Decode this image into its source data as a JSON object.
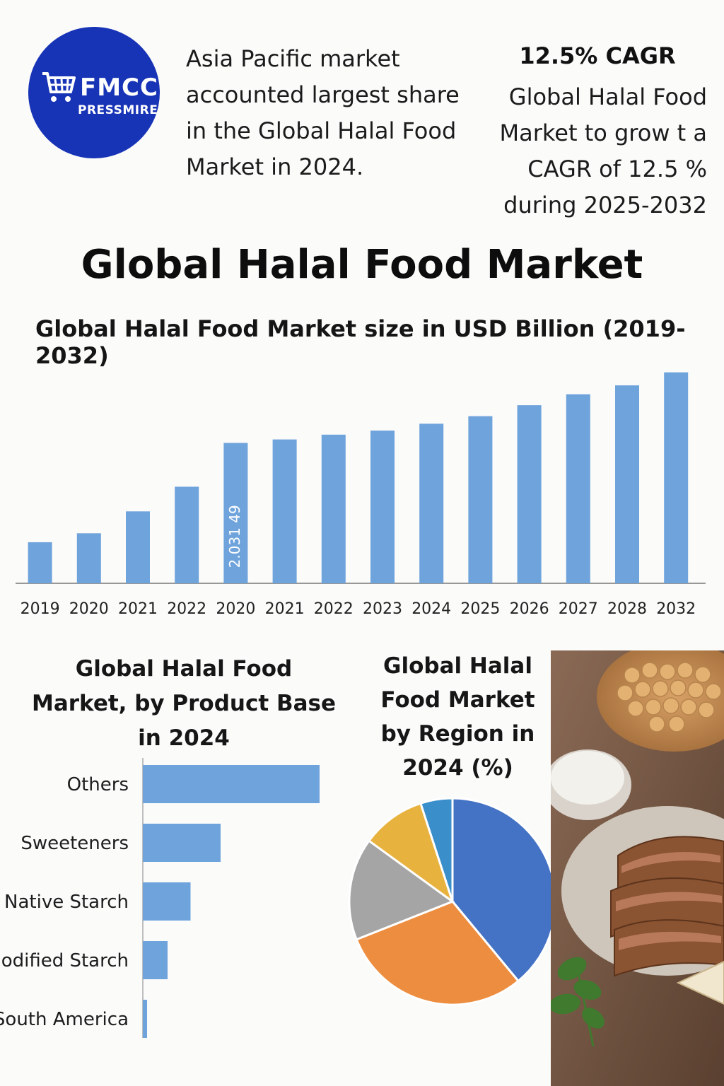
{
  "logo": {
    "brand": "FMCC",
    "sub": "PRESSMIRE"
  },
  "highlights": {
    "left_text": "Asia Pacific market accounted largest share in the Global Halal Food Market in 2024.",
    "cagr_head": "12.5% CAGR",
    "cagr_body": "Global Halal Food Market to grow t a CAGR of 12.5 % during 2025-2032"
  },
  "main_title": "Global Halal Food Market",
  "chart_data": [
    {
      "type": "bar",
      "title": "Global Halal Food Market size in USD Billion (2019-2032)",
      "categories": [
        "2019",
        "2020",
        "2021",
        "2022",
        "2020",
        "2021",
        "2022",
        "2023",
        "2024",
        "2025",
        "2026",
        "2027",
        "2028",
        "2032"
      ],
      "values": [
        60,
        73,
        105,
        141,
        205,
        210,
        217,
        223,
        233,
        244,
        260,
        276,
        289,
        308
      ],
      "ylim": [
        0,
        320
      ],
      "data_label": {
        "index": 4,
        "text": "2.031 49"
      },
      "color": "#6fa3dc"
    },
    {
      "type": "bar",
      "orientation": "horizontal",
      "title": "Global Halal Food Market, by Product Base in 2024",
      "categories": [
        "Others",
        "Sweeteners",
        "Native Starch",
        "Modified Starch",
        "South America"
      ],
      "values": [
        100,
        44,
        27,
        14,
        2
      ],
      "color": "#6fa3dc"
    },
    {
      "type": "pie",
      "title": "Global Halal Food Market by Region in 2024 (%)",
      "values": [
        39,
        30,
        16,
        10,
        5
      ],
      "colors": [
        "#4472c4",
        "#ed8d3f",
        "#a5a5a5",
        "#e8b23f",
        "#3a8fcb"
      ]
    }
  ]
}
